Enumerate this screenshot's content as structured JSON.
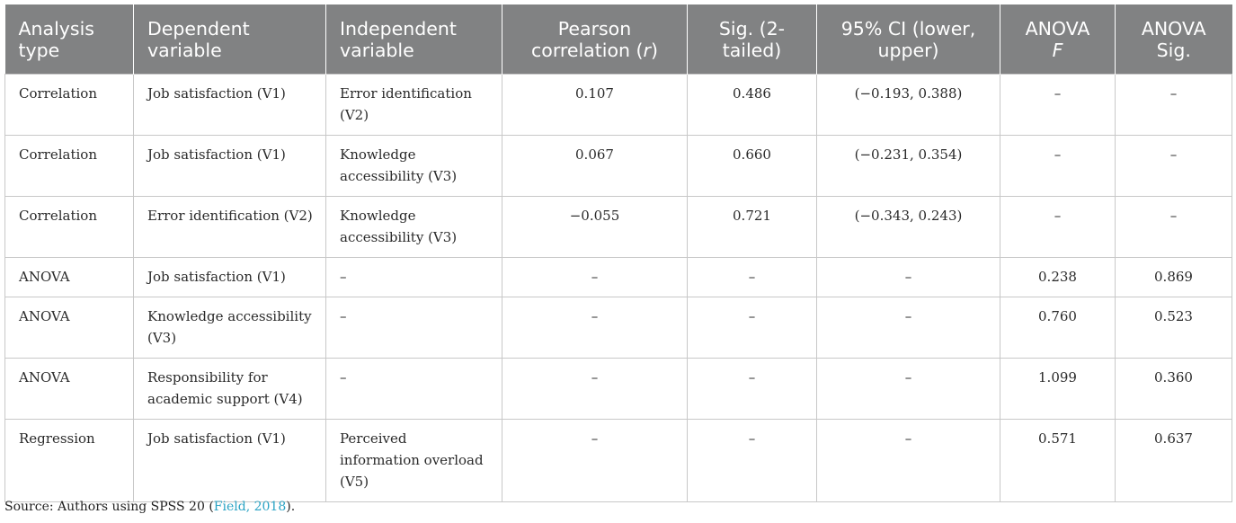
{
  "table": {
    "headers": {
      "analysis_type": "Analysis type",
      "dependent_variable": "Dependent variable",
      "independent_variable": "Independent variable",
      "pearson_prefix": "Pearson correlation (",
      "pearson_r": "r",
      "pearson_suffix": ")",
      "sig": "Sig. (2-tailed)",
      "ci": "95% CI (lower, upper)",
      "anova_f_prefix": "ANOVA",
      "anova_f_italic": "F",
      "anova_sig": "ANOVA Sig."
    },
    "rows": [
      [
        "Correlation",
        "Job satisfaction (V1)",
        "Error identification (V2)",
        "0.107",
        "0.486",
        "(−0.193, 0.388)",
        "–",
        "–"
      ],
      [
        "Correlation",
        "Job satisfaction (V1)",
        "Knowledge accessibility (V3)",
        "0.067",
        "0.660",
        "(−0.231, 0.354)",
        "–",
        "–"
      ],
      [
        "Correlation",
        "Error identification (V2)",
        "Knowledge accessibility (V3)",
        "−0.055",
        "0.721",
        "(−0.343, 0.243)",
        "–",
        "–"
      ],
      [
        "ANOVA",
        "Job satisfaction (V1)",
        "–",
        "–",
        "–",
        "–",
        "0.238",
        "0.869"
      ],
      [
        "ANOVA",
        "Knowledge accessibility (V3)",
        "–",
        "–",
        "–",
        "–",
        "0.760",
        "0.523"
      ],
      [
        "ANOVA",
        "Responsibility for academic support (V4)",
        "–",
        "–",
        "–",
        "–",
        "1.099",
        "0.360"
      ],
      [
        "Regression",
        "Job satisfaction (V1)",
        "Perceived information overload (V5)",
        "–",
        "–",
        "–",
        "0.571",
        "0.637"
      ]
    ]
  },
  "caption": {
    "prefix": "Source: Authors using SPSS 20 (",
    "citation": "Field, 2018",
    "suffix": ")."
  },
  "colors": {
    "header_bg": "#818283",
    "header_text": "#ffffff",
    "border": "#c8c8c8",
    "citation_link": "#2aa3c4"
  }
}
